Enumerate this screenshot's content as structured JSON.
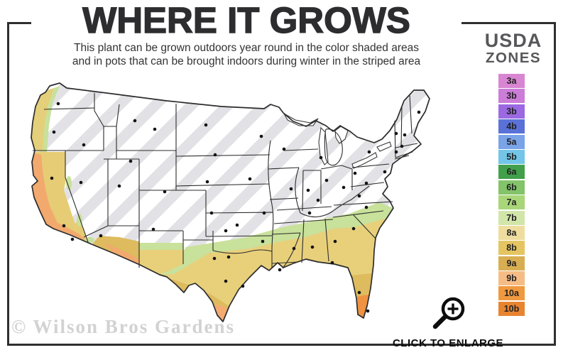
{
  "header": {
    "title": "WHERE IT GROWS",
    "subtitle_line1": "This plant can be grown outdoors year round in the color shaded areas",
    "subtitle_line2": "and in pots that can be brought indoors during winter in the striped area"
  },
  "legend": {
    "title_top": "USDA",
    "title_bottom": "ZONES",
    "zones": [
      {
        "label": "3a",
        "color": "#d886d2"
      },
      {
        "label": "3b",
        "color": "#cb7dd8"
      },
      {
        "label": "3b",
        "color": "#9b69e2"
      },
      {
        "label": "4b",
        "color": "#5a72d8"
      },
      {
        "label": "5a",
        "color": "#7aa3e8"
      },
      {
        "label": "5b",
        "color": "#73c6e8"
      },
      {
        "label": "6a",
        "color": "#42a04b"
      },
      {
        "label": "6b",
        "color": "#83c369"
      },
      {
        "label": "7a",
        "color": "#a9d679"
      },
      {
        "label": "7b",
        "color": "#d2e6aa"
      },
      {
        "label": "8a",
        "color": "#eedd9e"
      },
      {
        "label": "8b",
        "color": "#e5c561"
      },
      {
        "label": "9a",
        "color": "#d8ae52"
      },
      {
        "label": "9b",
        "color": "#f5bd85"
      },
      {
        "label": "10a",
        "color": "#f0993f"
      },
      {
        "label": "10b",
        "color": "#e8842f"
      }
    ]
  },
  "map": {
    "colors": {
      "stripe": "#e2e2e6",
      "outline": "#2c2c2c",
      "state_line": "#2c2c2c",
      "dot": "#141414",
      "pale_green": "#c8e19b",
      "yellow": "#e8d07b",
      "gold": "#ddbb5e",
      "peach": "#f3ab72",
      "orange": "#ef9343",
      "coast_orange": "#f2a96e",
      "ca_gold": "#e6cc74",
      "wa_yellow": "#e4cf7a",
      "lake_fill": "#ffffff"
    }
  },
  "footer": {
    "watermark": "© Wilson Bros Gardens",
    "enlarge_label": "CLICK TO ENLARGE"
  }
}
